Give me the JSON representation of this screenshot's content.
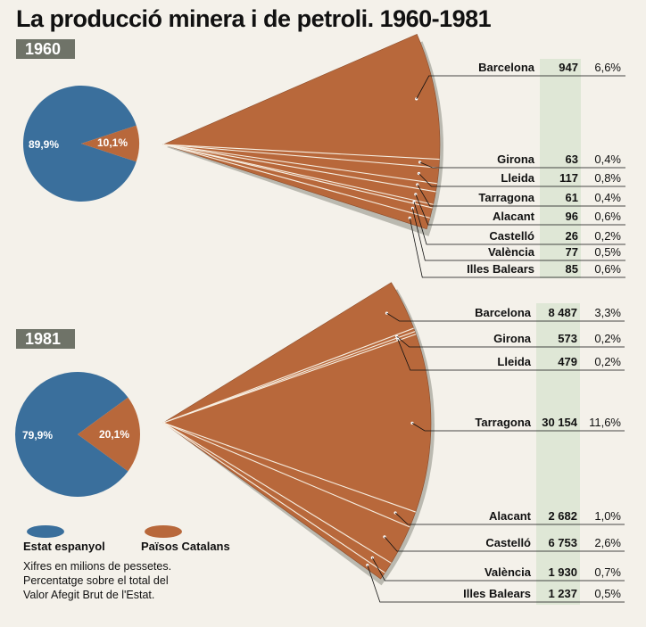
{
  "title": "La producció minera i de petroli. 1960-1981",
  "legend": {
    "estat": "Estat espanyol",
    "paisos": "Països Catalans",
    "colors": {
      "estat": "#3a6f9c",
      "paisos": "#b8683b"
    }
  },
  "note": [
    "Xifres en milions de pessetes.",
    "Percentatge sobre el total del",
    "Valor Afegit Brut de l'Estat."
  ],
  "chart_data": [
    {
      "type": "pie",
      "year": "1960",
      "pie": {
        "labels": [
          "89,9%",
          "10,1%"
        ],
        "values": [
          89.9,
          10.1
        ]
      },
      "regions": [
        {
          "name": "Barcelona",
          "value": 947,
          "value_text": "947",
          "percent_text": "6,6%"
        },
        {
          "name": "Girona",
          "value": 63,
          "value_text": "63",
          "percent_text": "0,4%"
        },
        {
          "name": "Lleida",
          "value": 117,
          "value_text": "117",
          "percent_text": "0,8%"
        },
        {
          "name": "Tarragona",
          "value": 61,
          "value_text": "61",
          "percent_text": "0,4%"
        },
        {
          "name": "Alacant",
          "value": 96,
          "value_text": "96",
          "percent_text": "0,6%"
        },
        {
          "name": "Castelló",
          "value": 26,
          "value_text": "26",
          "percent_text": "0,2%"
        },
        {
          "name": "València",
          "value": 77,
          "value_text": "77",
          "percent_text": "0,5%"
        },
        {
          "name": "Illes Balears",
          "value": 85,
          "value_text": "85",
          "percent_text": "0,6%"
        }
      ]
    },
    {
      "type": "pie",
      "year": "1981",
      "pie": {
        "labels": [
          "79,9%",
          "20,1%"
        ],
        "values": [
          79.9,
          20.1
        ]
      },
      "regions": [
        {
          "name": "Barcelona",
          "value": 8487,
          "value_text": "8 487",
          "percent_text": "3,3%"
        },
        {
          "name": "Girona",
          "value": 573,
          "value_text": "573",
          "percent_text": "0,2%"
        },
        {
          "name": "Lleida",
          "value": 479,
          "value_text": "479",
          "percent_text": "0,2%"
        },
        {
          "name": "Tarragona",
          "value": 30154,
          "value_text": "30 154",
          "percent_text": "11,6%"
        },
        {
          "name": "Alacant",
          "value": 2682,
          "value_text": "2 682",
          "percent_text": "1,0%"
        },
        {
          "name": "Castelló",
          "value": 6753,
          "value_text": "6 753",
          "percent_text": "2,6%"
        },
        {
          "name": "València",
          "value": 1930,
          "value_text": "1 930",
          "percent_text": "0,7%"
        },
        {
          "name": "Illes Balears",
          "value": 1237,
          "value_text": "1 237",
          "percent_text": "0,5%"
        }
      ]
    }
  ]
}
